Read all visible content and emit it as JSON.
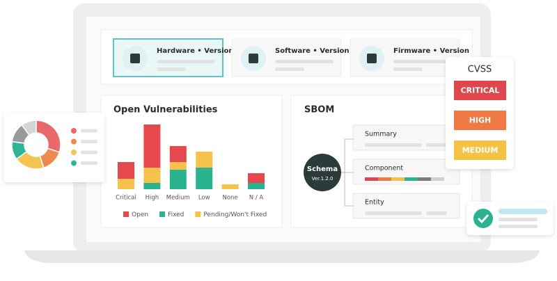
{
  "cards": [
    "Hardware • Version",
    "Software • Version",
    "Firmware • Version"
  ],
  "cvss": {
    "title": "CVSS",
    "levels": [
      "CRITICAL",
      "HIGH",
      "MEDIUM"
    ],
    "colors": [
      "#e0474c",
      "#ef7a45",
      "#f4c245"
    ]
  },
  "sbom": {
    "title": "SBOM",
    "schema": "Schema",
    "version": "Ver.1.2.0",
    "items": [
      "Summary",
      "Component",
      "Entity"
    ]
  },
  "chart_data": [
    {
      "type": "bar",
      "stacked": true,
      "title": "Open Vulnerabilities",
      "categories": [
        "Critical",
        "High",
        "Medium",
        "Low",
        "None",
        "N / A"
      ],
      "series": [
        {
          "name": "Open",
          "color": "#e5484d",
          "values": [
            24,
            62,
            23,
            0,
            0,
            14
          ]
        },
        {
          "name": "Fixed",
          "color": "#2bb38f",
          "values": [
            0,
            9,
            28,
            31,
            0,
            9
          ]
        },
        {
          "name": "Pending/Won't Fixed",
          "color": "#f5c24d",
          "values": [
            15,
            22,
            11,
            23,
            7,
            0
          ]
        }
      ],
      "ylim": [
        0,
        100
      ]
    },
    {
      "type": "pie",
      "donut": true,
      "values": [
        30,
        15,
        20,
        12,
        13,
        10
      ],
      "colors": [
        "#e9696b",
        "#ef8a4f",
        "#f4c453",
        "#2fb596",
        "#9a9a9a",
        "#d4d4d4"
      ]
    }
  ]
}
